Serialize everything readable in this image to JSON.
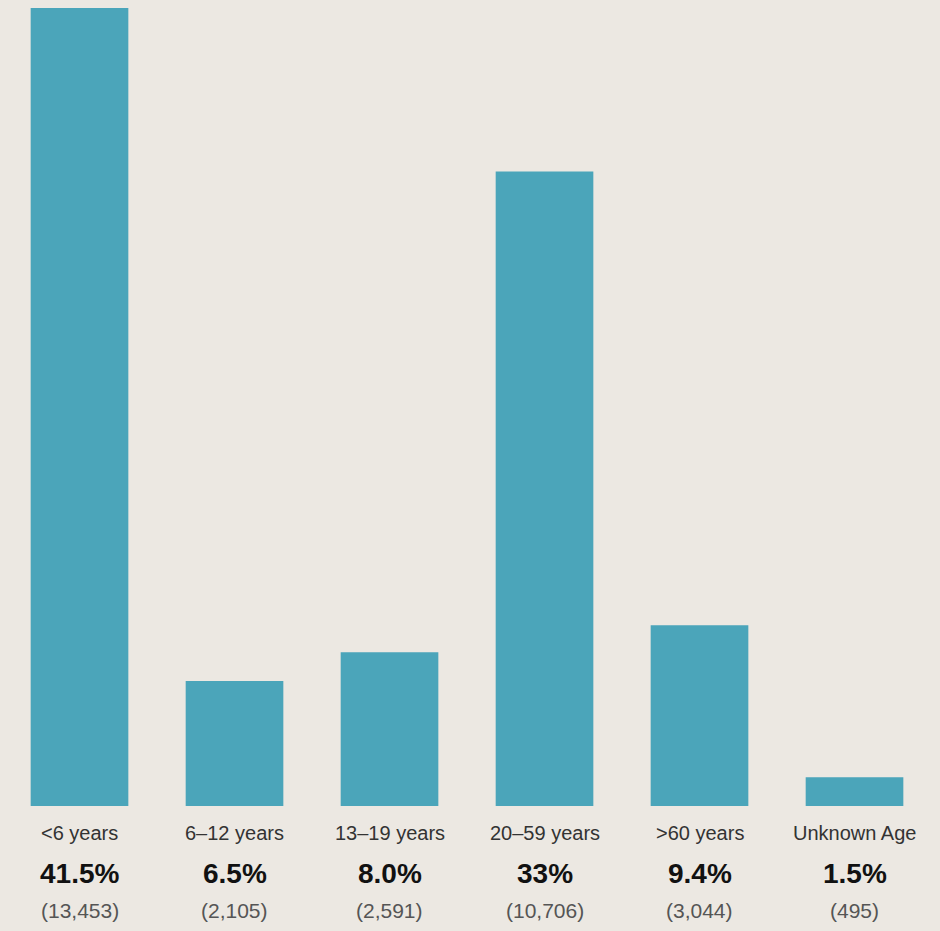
{
  "chart_data": {
    "type": "bar",
    "categories": [
      "<6 years",
      "6–12 years",
      "13–19 years",
      "20–59 years",
      ">60 years",
      "Unknown Age"
    ],
    "values": [
      41.5,
      6.5,
      8.0,
      33,
      9.4,
      1.5
    ],
    "value_labels": [
      "41.5%",
      "6.5%",
      "8.0%",
      "33%",
      "9.4%",
      "1.5%"
    ],
    "count_labels": [
      "(13,453)",
      "(2,105)",
      "(2,591)",
      "(10,706)",
      "(3,044)",
      "(495)"
    ],
    "color": "#4ba5ba",
    "ylim": [
      0,
      41.5
    ],
    "grid": false,
    "data_labels": true,
    "tick_labels": false
  }
}
